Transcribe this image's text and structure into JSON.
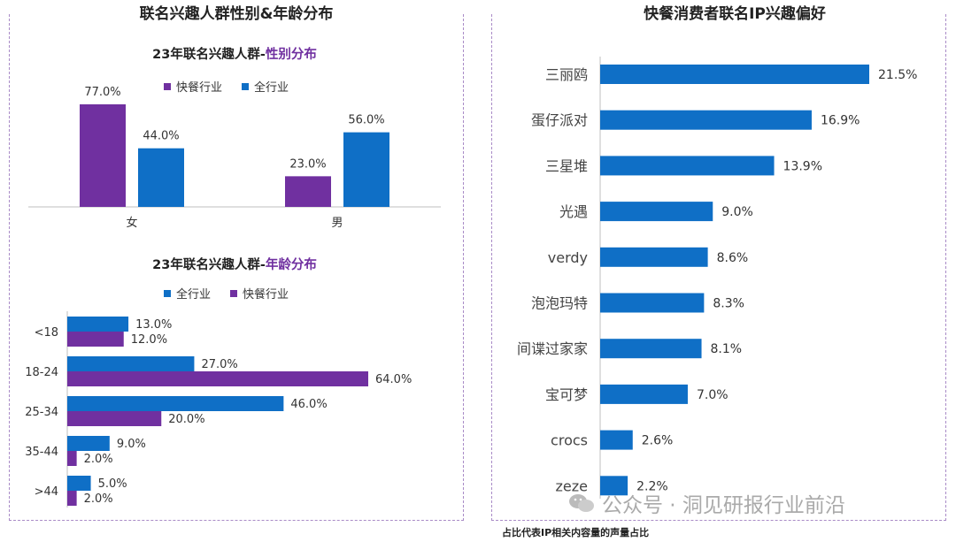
{
  "left_panel_title": "联名兴趣人群性别&年龄分布",
  "right_panel_title": "快餐消费者联名IP兴趣偏好",
  "footnote": "占比代表IP相关内容量的声量占比",
  "watermark": "公众号 · 洞见研报行业前沿",
  "colors": {
    "purple": "#7030a0",
    "blue": "#0f6fc6"
  },
  "chart_data": [
    {
      "type": "bar",
      "title_prefix": "23年联名兴趣人群-",
      "title_highlight": "性别分布",
      "categories": [
        "女",
        "男"
      ],
      "series": [
        {
          "name": "快餐行业",
          "values": [
            77.0,
            23.0
          ],
          "labels": [
            "77.0%",
            "23.0%"
          ],
          "color": "#7030a0"
        },
        {
          "name": "全行业",
          "values": [
            44.0,
            56.0
          ],
          "labels": [
            "44.0%",
            "56.0%"
          ],
          "color": "#0f6fc6"
        }
      ],
      "ylim": [
        0,
        80
      ]
    },
    {
      "type": "bar",
      "orientation": "horizontal",
      "title_prefix": "23年联名兴趣人群-",
      "title_highlight": "年龄分布",
      "categories": [
        "<18",
        "18-24",
        "25-34",
        "35-44",
        ">44"
      ],
      "series": [
        {
          "name": "全行业",
          "values": [
            13.0,
            27.0,
            46.0,
            9.0,
            5.0
          ],
          "labels": [
            "13.0%",
            "27.0%",
            "46.0%",
            "9.0%",
            "5.0%"
          ],
          "color": "#0f6fc6"
        },
        {
          "name": "快餐行业",
          "values": [
            12.0,
            64.0,
            20.0,
            2.0,
            2.0
          ],
          "labels": [
            "12.0%",
            "64.0%",
            "20.0%",
            "2.0%",
            "2.0%"
          ],
          "color": "#7030a0"
        }
      ],
      "xlim": [
        0,
        70
      ]
    },
    {
      "type": "bar",
      "orientation": "horizontal",
      "categories": [
        "三丽鸥",
        "蛋仔派对",
        "三星堆",
        "光遇",
        "verdy",
        "泡泡玛特",
        "间谍过家家",
        "宝可梦",
        "crocs",
        "zeze"
      ],
      "values": [
        21.5,
        16.9,
        13.9,
        9.0,
        8.6,
        8.3,
        8.1,
        7.0,
        2.6,
        2.2
      ],
      "labels": [
        "21.5%",
        "16.9%",
        "13.9%",
        "9.0%",
        "8.6%",
        "8.3%",
        "8.1%",
        "7.0%",
        "2.6%",
        "2.2%"
      ],
      "color": "#0f6fc6",
      "xlim": [
        0,
        22
      ]
    }
  ]
}
